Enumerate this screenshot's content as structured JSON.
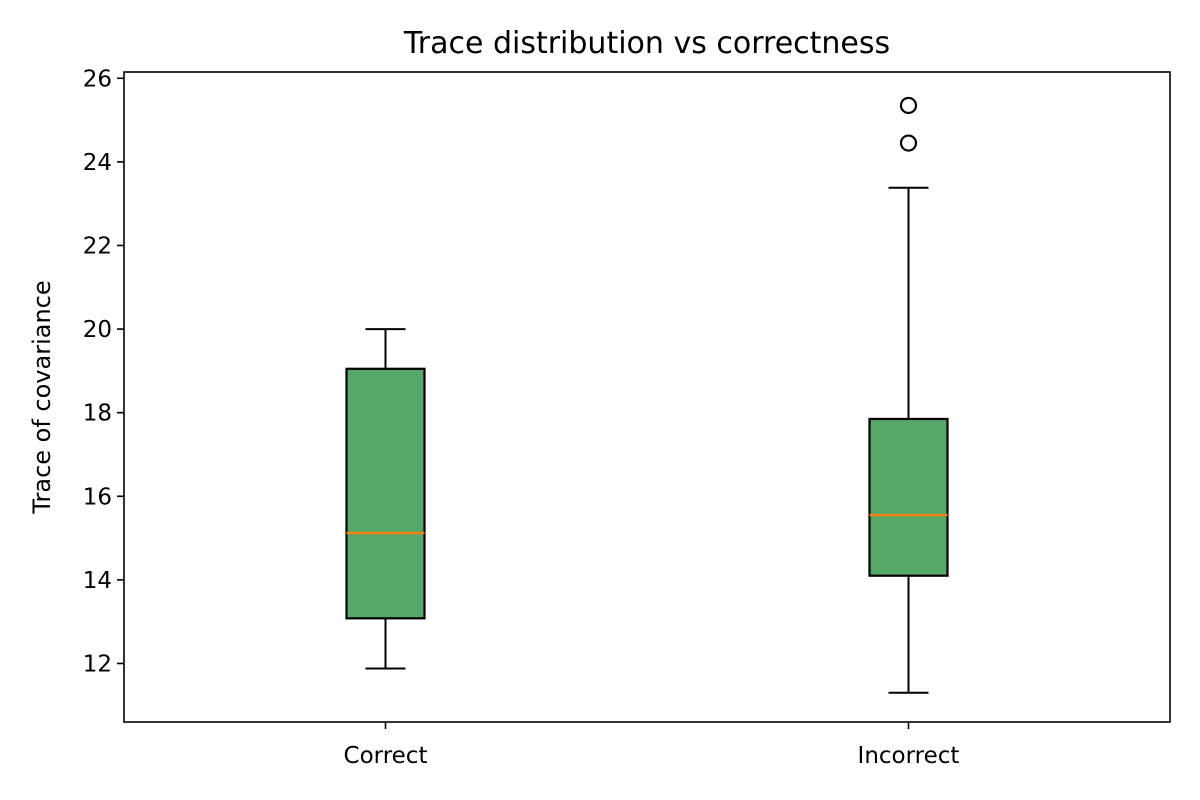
{
  "chart_data": {
    "type": "box",
    "title": "Trace distribution vs correctness",
    "xlabel": "",
    "ylabel": "Trace of covariance",
    "categories": [
      "Correct",
      "Incorrect"
    ],
    "ylim": [
      10.6,
      26.15
    ],
    "yticks": [
      12,
      14,
      16,
      18,
      20,
      22,
      24,
      26
    ],
    "grid": false,
    "series": [
      {
        "category": "Correct",
        "whisker_low": 11.88,
        "q1": 13.08,
        "median": 15.12,
        "q3": 19.05,
        "whisker_high": 20.0,
        "outliers": []
      },
      {
        "category": "Incorrect",
        "whisker_low": 11.3,
        "q1": 14.1,
        "median": 15.55,
        "q3": 17.85,
        "whisker_high": 23.38,
        "outliers": [
          24.45,
          25.35
        ]
      }
    ],
    "colors": {
      "box_fill": "#55a868",
      "median": "#ff7f0e",
      "edge": "#000000"
    }
  }
}
